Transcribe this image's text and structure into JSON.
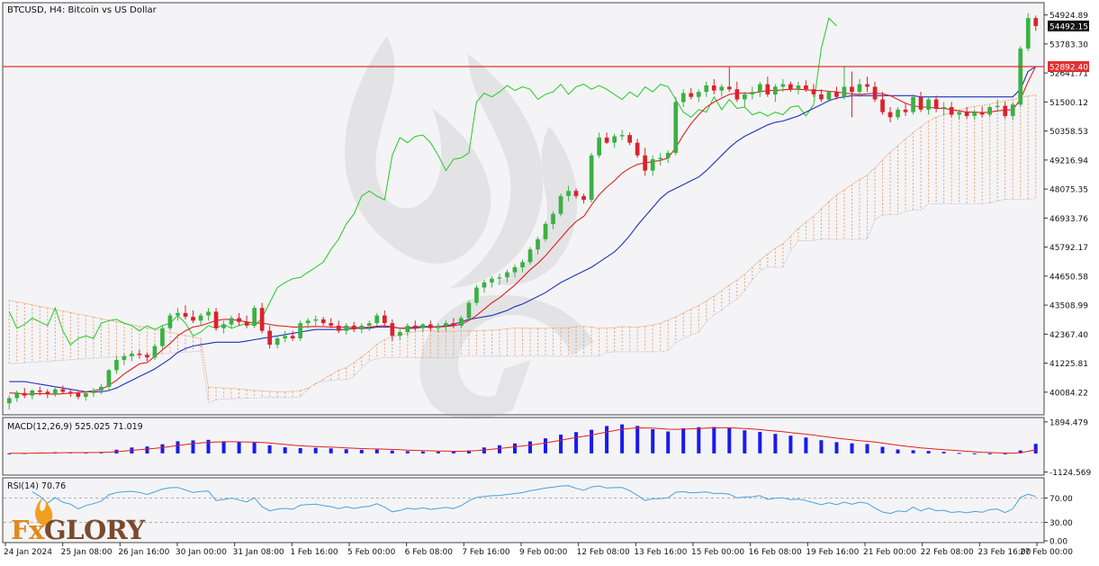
{
  "header": {
    "symbol_title": "BTCUSD, H4:  Bitcoin vs US Dollar"
  },
  "colors": {
    "bull": "#3cb043",
    "bear": "#d9232d",
    "tenkan": "#e02020",
    "kijun": "#2030c0",
    "chikou": "#22cc22",
    "kumo": "#f0a070",
    "kumo_down": "#c8c0d8",
    "macd_hist": "#1a1aee",
    "macd_signal": "#e02020",
    "rsi": "#4aa0e0",
    "hline": "#e03030"
  },
  "chart_data": [
    {
      "type": "candlestick",
      "title": "BTCUSD, H4:  Bitcoin vs US Dollar",
      "indicators": [
        "Ichimoku Kinko Hyo"
      ],
      "ylim": [
        39300,
        55300
      ],
      "y_ticks": [
        "54924.89",
        "53783.30",
        "52641.71",
        "51500.12",
        "50358.53",
        "49216.94",
        "48075.35",
        "46933.76",
        "45792.17",
        "44650.58",
        "43508.99",
        "42367.40",
        "41225.81",
        "40084.22"
      ],
      "last_price": "54492.15",
      "hline_value": "52892.40",
      "grid": false,
      "x_ticks": [
        "24 Jan 2024",
        "25 Jan 08:00",
        "26 Jan 16:00",
        "30 Jan 00:00",
        "31 Jan 08:00",
        "1 Feb 16:00",
        "5 Feb 00:00",
        "6 Feb 08:00",
        "7 Feb 16:00",
        "9 Feb 00:00",
        "12 Feb 08:00",
        "13 Feb 16:00",
        "15 Feb 00:00",
        "16 Feb 08:00",
        "19 Feb 16:00",
        "21 Feb 00:00",
        "22 Feb 08:00",
        "23 Feb 16:00",
        "27 Feb 00:00"
      ],
      "candles": [
        [
          39650,
          39950,
          39400,
          39850
        ],
        [
          39850,
          40150,
          39700,
          40050
        ],
        [
          40050,
          40250,
          39850,
          39950
        ],
        [
          39950,
          40200,
          39800,
          40150
        ],
        [
          40150,
          40300,
          39950,
          40100
        ],
        [
          40100,
          40200,
          39850,
          40000
        ],
        [
          40000,
          40300,
          39900,
          40200
        ],
        [
          40200,
          40350,
          40000,
          40100
        ],
        [
          40100,
          40200,
          39900,
          40050
        ],
        [
          40050,
          40150,
          39800,
          39900
        ],
        [
          39900,
          40100,
          39750,
          40050
        ],
        [
          40050,
          40250,
          39900,
          40150
        ],
        [
          40150,
          40400,
          40000,
          40300
        ],
        [
          40300,
          41000,
          40150,
          40950
        ],
        [
          40950,
          41500,
          40800,
          41350
        ],
        [
          41350,
          41600,
          41150,
          41500
        ],
        [
          41500,
          41700,
          41300,
          41600
        ],
        [
          41600,
          41750,
          41400,
          41550
        ],
        [
          41550,
          41650,
          41300,
          41450
        ],
        [
          41450,
          42000,
          41350,
          41900
        ],
        [
          41900,
          42700,
          41800,
          42600
        ],
        [
          42600,
          43200,
          42500,
          43100
        ],
        [
          43100,
          43400,
          42900,
          43200
        ],
        [
          43200,
          43500,
          42950,
          43050
        ],
        [
          43050,
          43300,
          42800,
          42900
        ],
        [
          42900,
          43200,
          42700,
          43100
        ],
        [
          43100,
          43400,
          42900,
          43250
        ],
        [
          43250,
          43400,
          42500,
          42600
        ],
        [
          42600,
          42900,
          42400,
          42750
        ],
        [
          42750,
          43100,
          42600,
          43000
        ],
        [
          43000,
          43200,
          42700,
          42850
        ],
        [
          42850,
          43100,
          42600,
          42700
        ],
        [
          42700,
          43500,
          42600,
          43400
        ],
        [
          43400,
          43600,
          42400,
          42500
        ],
        [
          42500,
          42700,
          41800,
          41950
        ],
        [
          41950,
          42300,
          41800,
          42200
        ],
        [
          42200,
          42500,
          42050,
          42300
        ],
        [
          42300,
          42500,
          42100,
          42200
        ],
        [
          42200,
          42900,
          42100,
          42800
        ],
        [
          42800,
          43000,
          42600,
          42900
        ],
        [
          42900,
          43100,
          42700,
          42950
        ],
        [
          42950,
          43050,
          42700,
          42800
        ],
        [
          42800,
          43000,
          42600,
          42700
        ],
        [
          42700,
          42900,
          42400,
          42500
        ],
        [
          42500,
          42800,
          42350,
          42700
        ],
        [
          42700,
          42850,
          42450,
          42550
        ],
        [
          42550,
          42800,
          42400,
          42700
        ],
        [
          42700,
          42900,
          42500,
          42800
        ],
        [
          42800,
          43200,
          42700,
          43100
        ],
        [
          43100,
          43300,
          42700,
          42800
        ],
        [
          42800,
          42950,
          42100,
          42300
        ],
        [
          42300,
          42550,
          42150,
          42450
        ],
        [
          42450,
          42800,
          42300,
          42700
        ],
        [
          42700,
          42900,
          42500,
          42600
        ],
        [
          42600,
          42800,
          42450,
          42750
        ],
        [
          42750,
          42900,
          42500,
          42600
        ],
        [
          42600,
          42800,
          42450,
          42700
        ],
        [
          42700,
          42900,
          42500,
          42800
        ],
        [
          42800,
          43000,
          42600,
          42700
        ],
        [
          42700,
          43100,
          42600,
          43000
        ],
        [
          43000,
          43700,
          42900,
          43600
        ],
        [
          43600,
          44300,
          43500,
          44200
        ],
        [
          44200,
          44500,
          44000,
          44400
        ],
        [
          44400,
          44650,
          44200,
          44550
        ],
        [
          44550,
          44750,
          44300,
          44600
        ],
        [
          44600,
          44900,
          44400,
          44800
        ],
        [
          44800,
          45100,
          44600,
          45000
        ],
        [
          45000,
          45300,
          44800,
          45200
        ],
        [
          45200,
          45800,
          45100,
          45700
        ],
        [
          45700,
          46200,
          45500,
          46100
        ],
        [
          46100,
          46800,
          46000,
          46700
        ],
        [
          46700,
          47200,
          46500,
          47100
        ],
        [
          47100,
          47900,
          47000,
          47800
        ],
        [
          47800,
          48200,
          47600,
          48000
        ],
        [
          48000,
          48100,
          47700,
          47800
        ],
        [
          47800,
          47900,
          47500,
          47650
        ],
        [
          47650,
          49500,
          47550,
          49400
        ],
        [
          49400,
          50300,
          49300,
          50100
        ],
        [
          50100,
          50300,
          49850,
          49900
        ],
        [
          49900,
          50250,
          49700,
          50150
        ],
        [
          50150,
          50400,
          50000,
          50200
        ],
        [
          50200,
          50300,
          49800,
          49900
        ],
        [
          49900,
          50050,
          49300,
          49400
        ],
        [
          49400,
          49700,
          48600,
          48800
        ],
        [
          48800,
          49400,
          48600,
          49250
        ],
        [
          49250,
          49500,
          49000,
          49300
        ],
        [
          49300,
          49600,
          49100,
          49500
        ],
        [
          49500,
          51700,
          49400,
          51500
        ],
        [
          51500,
          52000,
          51300,
          51850
        ],
        [
          51850,
          52050,
          51600,
          51700
        ],
        [
          51700,
          52000,
          51500,
          51900
        ],
        [
          51900,
          52300,
          51700,
          52150
        ],
        [
          52150,
          52400,
          51800,
          51950
        ],
        [
          51950,
          52200,
          51700,
          52100
        ],
        [
          52100,
          52900,
          51900,
          52000
        ],
        [
          52000,
          52300,
          51500,
          51600
        ],
        [
          51600,
          51900,
          51300,
          51800
        ],
        [
          51800,
          52100,
          51600,
          51900
        ],
        [
          51900,
          52300,
          51700,
          52200
        ],
        [
          52200,
          52500,
          51700,
          51800
        ],
        [
          51800,
          52200,
          51500,
          52100
        ],
        [
          52100,
          52400,
          51900,
          52200
        ],
        [
          52200,
          52300,
          51900,
          52000
        ],
        [
          52000,
          52300,
          51800,
          52150
        ],
        [
          52150,
          52350,
          51900,
          52000
        ],
        [
          52000,
          52200,
          51700,
          51800
        ],
        [
          51800,
          52000,
          51500,
          51600
        ],
        [
          51600,
          51950,
          51500,
          51900
        ],
        [
          51900,
          52100,
          51600,
          51700
        ],
        [
          51700,
          52900,
          51600,
          52100
        ],
        [
          52100,
          52700,
          50900,
          51900
        ],
        [
          51900,
          52400,
          51700,
          52200
        ],
        [
          52200,
          52500,
          51900,
          52100
        ],
        [
          52100,
          52300,
          51500,
          51600
        ],
        [
          51600,
          51900,
          51000,
          51100
        ],
        [
          51100,
          51300,
          50700,
          50900
        ],
        [
          50900,
          51300,
          50800,
          51200
        ],
        [
          51200,
          51450,
          50950,
          51100
        ],
        [
          51100,
          51800,
          51000,
          51700
        ],
        [
          51700,
          51900,
          51100,
          51200
        ],
        [
          51200,
          51700,
          51000,
          51600
        ],
        [
          51600,
          51750,
          51100,
          51250
        ],
        [
          51250,
          51500,
          51000,
          51300
        ],
        [
          51300,
          51500,
          50900,
          51000
        ],
        [
          51000,
          51200,
          50800,
          51100
        ],
        [
          51100,
          51300,
          50850,
          50950
        ],
        [
          50950,
          51200,
          50800,
          51100
        ],
        [
          51100,
          51300,
          50900,
          51000
        ],
        [
          51000,
          51350,
          50900,
          51300
        ],
        [
          51300,
          51600,
          51100,
          51350
        ],
        [
          51350,
          51500,
          50850,
          50950
        ],
        [
          50950,
          51500,
          50800,
          51400
        ],
        [
          51400,
          53700,
          51300,
          53600
        ],
        [
          53600,
          55000,
          53500,
          54800
        ],
        [
          54800,
          54900,
          54300,
          54490
        ]
      ],
      "tenkan": [
        40050,
        40050,
        40000,
        40020,
        40030,
        40020,
        40000,
        40030,
        40040,
        40060,
        40100,
        40140,
        40200,
        40350,
        40550,
        40800,
        41000,
        41200,
        41250,
        41500,
        41750,
        42000,
        42300,
        42500,
        42650,
        42700,
        42800,
        42900,
        42950,
        42950,
        42900,
        42850,
        42800,
        42800,
        42750,
        42700,
        42680,
        42650,
        42650,
        42660,
        42670,
        42660,
        42650,
        42650,
        42640,
        42630,
        42620,
        42640,
        42680,
        42700,
        42650,
        42600,
        42620,
        42650,
        42680,
        42660,
        42650,
        42670,
        42700,
        42750,
        42900,
        43100,
        43350,
        43600,
        43800,
        44050,
        44300,
        44600,
        44900,
        45150,
        45450,
        45800,
        46150,
        46500,
        46800,
        47000,
        47450,
        47850,
        48150,
        48400,
        48700,
        48900,
        49050,
        49100,
        49150,
        49200,
        49300,
        49700,
        50200,
        50650,
        51000,
        51300,
        51500,
        51650,
        51800,
        51850,
        51850,
        51850,
        51900,
        51950,
        51950,
        51980,
        52000,
        52000,
        51980,
        51950,
        51950,
        51920,
        51900,
        51850,
        51820,
        51800,
        51820,
        51850,
        51820,
        51750,
        51600,
        51450,
        51350,
        51300,
        51300,
        51250,
        51250,
        51200,
        51150,
        51100,
        51100,
        51080,
        51100,
        51150,
        51180,
        51200,
        51600,
        52300,
        52900
      ],
      "kijun": [
        40500,
        40500,
        40500,
        40450,
        40400,
        40350,
        40300,
        40250,
        40200,
        40150,
        40100,
        40100,
        40100,
        40150,
        40250,
        40400,
        40550,
        40700,
        40850,
        41000,
        41200,
        41400,
        41650,
        41800,
        41900,
        41950,
        42000,
        42050,
        42050,
        42050,
        42050,
        42100,
        42150,
        42200,
        42250,
        42300,
        42350,
        42400,
        42450,
        42500,
        42550,
        42550,
        42550,
        42550,
        42550,
        42600,
        42600,
        42600,
        42650,
        42650,
        42650,
        42600,
        42600,
        42600,
        42650,
        42650,
        42650,
        42700,
        42750,
        42850,
        42950,
        43000,
        43050,
        43100,
        43200,
        43300,
        43450,
        43550,
        43700,
        43850,
        44000,
        44200,
        44400,
        44550,
        44700,
        44850,
        45000,
        45200,
        45400,
        45600,
        45900,
        46250,
        46650,
        47000,
        47350,
        47700,
        47950,
        48100,
        48250,
        48400,
        48550,
        48800,
        49100,
        49400,
        49700,
        49950,
        50150,
        50300,
        50450,
        50600,
        50700,
        50750,
        50850,
        50950,
        51100,
        51250,
        51400,
        51550,
        51650,
        51700,
        51750,
        51750,
        51750,
        51750,
        51750,
        51750,
        51750,
        51750,
        51750,
        51700,
        51700,
        51700,
        51700,
        51700,
        51700,
        51700,
        51700,
        51700,
        51700,
        51700,
        51700,
        51700,
        52000,
        52700,
        52900
      ]
    },
    {
      "type": "macd_histogram",
      "label": "MACD(12,26,9) 525.025 71.019",
      "params": "12,26,9",
      "main_value": "525.025",
      "signal_value": "71.019",
      "ylim": [
        -1200,
        2050
      ],
      "y_ticks": [
        "1894.479",
        "-1124.569"
      ]
    },
    {
      "type": "line",
      "label": "RSI(14) 70.76",
      "value": "70.76",
      "ylim": [
        0,
        100
      ],
      "levels": [
        70,
        30
      ],
      "y_ticks": [
        "70.00",
        "30.00",
        "0.00"
      ]
    }
  ],
  "branding": {
    "logo_text_prefix": "Fx",
    "logo_text_main": "GLORY"
  }
}
